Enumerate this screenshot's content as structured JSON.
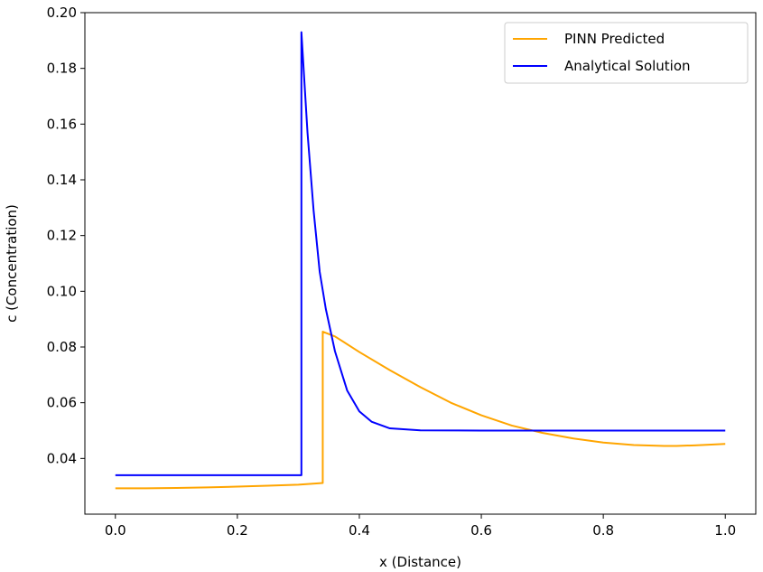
{
  "chart_data": {
    "type": "line",
    "xlabel": "x (Distance)",
    "ylabel": "c (Concentration)",
    "xlim": [
      -0.05,
      1.05
    ],
    "ylim": [
      0.02,
      0.2
    ],
    "xticks": [
      0.0,
      0.2,
      0.4,
      0.6,
      0.8,
      1.0
    ],
    "xtick_labels": [
      "0.0",
      "0.2",
      "0.4",
      "0.6",
      "0.8",
      "1.0"
    ],
    "yticks": [
      0.04,
      0.06,
      0.08,
      0.1,
      0.12,
      0.14,
      0.16,
      0.18,
      0.2
    ],
    "ytick_labels": [
      "0.04",
      "0.06",
      "0.08",
      "0.10",
      "0.12",
      "0.14",
      "0.16",
      "0.18",
      "0.20"
    ],
    "grid": false,
    "legend_position": "top-right",
    "series": [
      {
        "name": "PINN Predicted",
        "color": "#FFA500",
        "x": [
          0.0,
          0.05,
          0.1,
          0.15,
          0.2,
          0.25,
          0.3,
          0.34,
          0.34,
          0.36,
          0.4,
          0.45,
          0.5,
          0.55,
          0.6,
          0.65,
          0.7,
          0.75,
          0.8,
          0.85,
          0.9,
          0.92,
          0.95,
          1.0
        ],
        "y": [
          0.0293,
          0.0293,
          0.0294,
          0.0296,
          0.0299,
          0.0302,
          0.0306,
          0.0312,
          0.0855,
          0.0838,
          0.0782,
          0.0717,
          0.0656,
          0.06,
          0.0555,
          0.0518,
          0.0492,
          0.0472,
          0.0457,
          0.0448,
          0.0445,
          0.0445,
          0.0447,
          0.0452
        ]
      },
      {
        "name": "Analytical Solution",
        "color": "#0000FF",
        "x": [
          0.0,
          0.1,
          0.2,
          0.3,
          0.305,
          0.305,
          0.315,
          0.325,
          0.335,
          0.345,
          0.36,
          0.38,
          0.4,
          0.42,
          0.45,
          0.5,
          0.6,
          0.7,
          0.8,
          0.9,
          1.0
        ],
        "y": [
          0.034,
          0.034,
          0.034,
          0.034,
          0.034,
          0.193,
          0.157,
          0.129,
          0.107,
          0.0937,
          0.0785,
          0.0644,
          0.0569,
          0.0532,
          0.0508,
          0.0501,
          0.05,
          0.05,
          0.05,
          0.05,
          0.05
        ]
      }
    ]
  }
}
